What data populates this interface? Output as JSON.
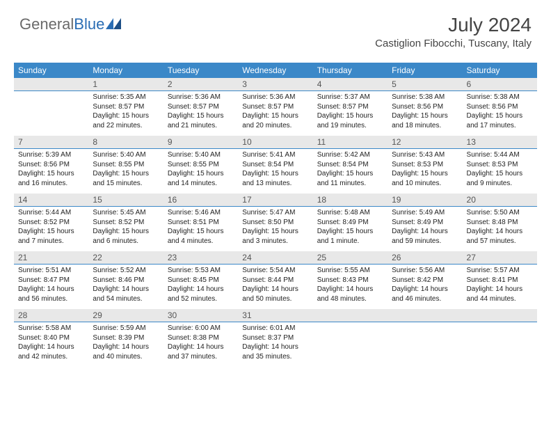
{
  "brand": {
    "part1": "General",
    "part2": "Blue"
  },
  "title": "July 2024",
  "location": "Castiglion Fibocchi, Tuscany, Italy",
  "colors": {
    "header_bg": "#3b88c8",
    "header_fg": "#ffffff",
    "daynum_bg": "#e8e8e8",
    "daynum_border": "#3b88c8",
    "brand_gray": "#6a6a6a",
    "brand_blue": "#2a6db4"
  },
  "weekdays": [
    "Sunday",
    "Monday",
    "Tuesday",
    "Wednesday",
    "Thursday",
    "Friday",
    "Saturday"
  ],
  "weeks": [
    [
      {
        "n": "",
        "sunrise": "",
        "sunset": "",
        "daylight": ""
      },
      {
        "n": "1",
        "sunrise": "Sunrise: 5:35 AM",
        "sunset": "Sunset: 8:57 PM",
        "daylight": "Daylight: 15 hours and 22 minutes."
      },
      {
        "n": "2",
        "sunrise": "Sunrise: 5:36 AM",
        "sunset": "Sunset: 8:57 PM",
        "daylight": "Daylight: 15 hours and 21 minutes."
      },
      {
        "n": "3",
        "sunrise": "Sunrise: 5:36 AM",
        "sunset": "Sunset: 8:57 PM",
        "daylight": "Daylight: 15 hours and 20 minutes."
      },
      {
        "n": "4",
        "sunrise": "Sunrise: 5:37 AM",
        "sunset": "Sunset: 8:57 PM",
        "daylight": "Daylight: 15 hours and 19 minutes."
      },
      {
        "n": "5",
        "sunrise": "Sunrise: 5:38 AM",
        "sunset": "Sunset: 8:56 PM",
        "daylight": "Daylight: 15 hours and 18 minutes."
      },
      {
        "n": "6",
        "sunrise": "Sunrise: 5:38 AM",
        "sunset": "Sunset: 8:56 PM",
        "daylight": "Daylight: 15 hours and 17 minutes."
      }
    ],
    [
      {
        "n": "7",
        "sunrise": "Sunrise: 5:39 AM",
        "sunset": "Sunset: 8:56 PM",
        "daylight": "Daylight: 15 hours and 16 minutes."
      },
      {
        "n": "8",
        "sunrise": "Sunrise: 5:40 AM",
        "sunset": "Sunset: 8:55 PM",
        "daylight": "Daylight: 15 hours and 15 minutes."
      },
      {
        "n": "9",
        "sunrise": "Sunrise: 5:40 AM",
        "sunset": "Sunset: 8:55 PM",
        "daylight": "Daylight: 15 hours and 14 minutes."
      },
      {
        "n": "10",
        "sunrise": "Sunrise: 5:41 AM",
        "sunset": "Sunset: 8:54 PM",
        "daylight": "Daylight: 15 hours and 13 minutes."
      },
      {
        "n": "11",
        "sunrise": "Sunrise: 5:42 AM",
        "sunset": "Sunset: 8:54 PM",
        "daylight": "Daylight: 15 hours and 11 minutes."
      },
      {
        "n": "12",
        "sunrise": "Sunrise: 5:43 AM",
        "sunset": "Sunset: 8:53 PM",
        "daylight": "Daylight: 15 hours and 10 minutes."
      },
      {
        "n": "13",
        "sunrise": "Sunrise: 5:44 AM",
        "sunset": "Sunset: 8:53 PM",
        "daylight": "Daylight: 15 hours and 9 minutes."
      }
    ],
    [
      {
        "n": "14",
        "sunrise": "Sunrise: 5:44 AM",
        "sunset": "Sunset: 8:52 PM",
        "daylight": "Daylight: 15 hours and 7 minutes."
      },
      {
        "n": "15",
        "sunrise": "Sunrise: 5:45 AM",
        "sunset": "Sunset: 8:52 PM",
        "daylight": "Daylight: 15 hours and 6 minutes."
      },
      {
        "n": "16",
        "sunrise": "Sunrise: 5:46 AM",
        "sunset": "Sunset: 8:51 PM",
        "daylight": "Daylight: 15 hours and 4 minutes."
      },
      {
        "n": "17",
        "sunrise": "Sunrise: 5:47 AM",
        "sunset": "Sunset: 8:50 PM",
        "daylight": "Daylight: 15 hours and 3 minutes."
      },
      {
        "n": "18",
        "sunrise": "Sunrise: 5:48 AM",
        "sunset": "Sunset: 8:49 PM",
        "daylight": "Daylight: 15 hours and 1 minute."
      },
      {
        "n": "19",
        "sunrise": "Sunrise: 5:49 AM",
        "sunset": "Sunset: 8:49 PM",
        "daylight": "Daylight: 14 hours and 59 minutes."
      },
      {
        "n": "20",
        "sunrise": "Sunrise: 5:50 AM",
        "sunset": "Sunset: 8:48 PM",
        "daylight": "Daylight: 14 hours and 57 minutes."
      }
    ],
    [
      {
        "n": "21",
        "sunrise": "Sunrise: 5:51 AM",
        "sunset": "Sunset: 8:47 PM",
        "daylight": "Daylight: 14 hours and 56 minutes."
      },
      {
        "n": "22",
        "sunrise": "Sunrise: 5:52 AM",
        "sunset": "Sunset: 8:46 PM",
        "daylight": "Daylight: 14 hours and 54 minutes."
      },
      {
        "n": "23",
        "sunrise": "Sunrise: 5:53 AM",
        "sunset": "Sunset: 8:45 PM",
        "daylight": "Daylight: 14 hours and 52 minutes."
      },
      {
        "n": "24",
        "sunrise": "Sunrise: 5:54 AM",
        "sunset": "Sunset: 8:44 PM",
        "daylight": "Daylight: 14 hours and 50 minutes."
      },
      {
        "n": "25",
        "sunrise": "Sunrise: 5:55 AM",
        "sunset": "Sunset: 8:43 PM",
        "daylight": "Daylight: 14 hours and 48 minutes."
      },
      {
        "n": "26",
        "sunrise": "Sunrise: 5:56 AM",
        "sunset": "Sunset: 8:42 PM",
        "daylight": "Daylight: 14 hours and 46 minutes."
      },
      {
        "n": "27",
        "sunrise": "Sunrise: 5:57 AM",
        "sunset": "Sunset: 8:41 PM",
        "daylight": "Daylight: 14 hours and 44 minutes."
      }
    ],
    [
      {
        "n": "28",
        "sunrise": "Sunrise: 5:58 AM",
        "sunset": "Sunset: 8:40 PM",
        "daylight": "Daylight: 14 hours and 42 minutes."
      },
      {
        "n": "29",
        "sunrise": "Sunrise: 5:59 AM",
        "sunset": "Sunset: 8:39 PM",
        "daylight": "Daylight: 14 hours and 40 minutes."
      },
      {
        "n": "30",
        "sunrise": "Sunrise: 6:00 AM",
        "sunset": "Sunset: 8:38 PM",
        "daylight": "Daylight: 14 hours and 37 minutes."
      },
      {
        "n": "31",
        "sunrise": "Sunrise: 6:01 AM",
        "sunset": "Sunset: 8:37 PM",
        "daylight": "Daylight: 14 hours and 35 minutes."
      },
      {
        "n": "",
        "sunrise": "",
        "sunset": "",
        "daylight": ""
      },
      {
        "n": "",
        "sunrise": "",
        "sunset": "",
        "daylight": ""
      },
      {
        "n": "",
        "sunrise": "",
        "sunset": "",
        "daylight": ""
      }
    ]
  ]
}
